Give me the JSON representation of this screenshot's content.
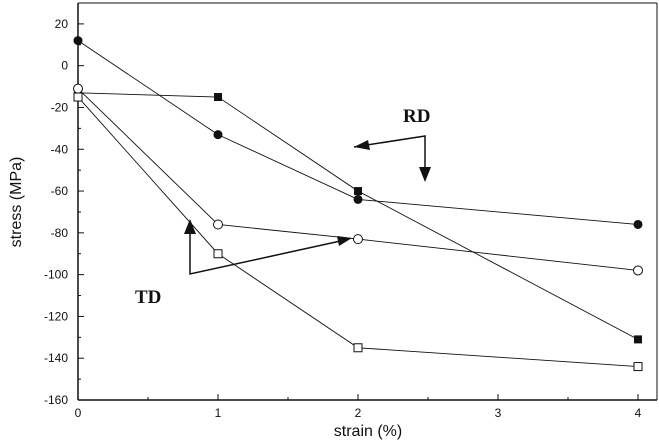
{
  "chart_data": {
    "type": "scatter",
    "xlabel": "strain (%)",
    "ylabel": "stress (MPa)",
    "x_ticks": [
      "0",
      "1",
      "2",
      "3",
      "4"
    ],
    "y_ticks": [
      "20",
      "0",
      "-20",
      "-40",
      "-60",
      "-80",
      "-100",
      "-120",
      "-140",
      "-160"
    ],
    "xlim": [
      0,
      4
    ],
    "ylim": [
      -160,
      30
    ],
    "grid": false,
    "marker_color": "#111111",
    "series": [
      {
        "marker": "filled-square",
        "x": [
          0,
          1,
          2,
          4
        ],
        "y": [
          -13,
          -15,
          -60,
          -131
        ]
      },
      {
        "marker": "filled-circle",
        "x": [
          0,
          1,
          2,
          4
        ],
        "y": [
          12,
          -33,
          -64,
          -76
        ]
      },
      {
        "marker": "open-circle",
        "x": [
          0,
          1,
          2,
          4
        ],
        "y": [
          -11,
          -76,
          -83,
          -98
        ]
      },
      {
        "marker": "open-square",
        "x": [
          0,
          1,
          2,
          4
        ],
        "y": [
          -15,
          -90,
          -135,
          -144
        ]
      }
    ],
    "annotations": [
      {
        "text": "RD"
      },
      {
        "text": "TD"
      }
    ]
  }
}
